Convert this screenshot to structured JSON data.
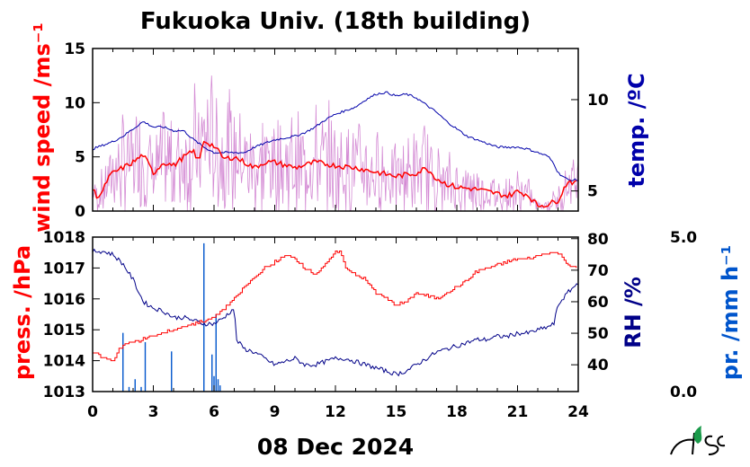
{
  "title": "Fukuoka Univ. (18th building)",
  "date_label": "08 Dec 2024",
  "colors": {
    "wind": "#ff0000",
    "wind_raw": "#cc77cc",
    "temp": "#0000aa",
    "press": "#ff0000",
    "rh": "#000088",
    "precip": "#0055cc",
    "axis": "#000000"
  },
  "chart_data": [
    {
      "type": "line",
      "title": "",
      "xlabel": "",
      "xlim": [
        0,
        24
      ],
      "xticks": [
        "0",
        "3",
        "6",
        "9",
        "12",
        "15",
        "18",
        "21",
        "24"
      ],
      "y_left": {
        "label": "wind speed /ms⁻¹",
        "ylim": [
          0,
          15
        ],
        "ticks": [
          "0",
          "5",
          "10",
          "15"
        ]
      },
      "y_right": {
        "label": "temp. /ºC",
        "ylim": [
          3.9,
          12.8
        ],
        "ticks": [
          "5",
          "10"
        ]
      },
      "series": [
        {
          "name": "",
          "axis": "left",
          "style": "wind_mean",
          "x": [
            0,
            0.25,
            0.5,
            0.75,
            1,
            1.5,
            2,
            2.5,
            3,
            3.5,
            4,
            4.5,
            5,
            5.25,
            5.5,
            6,
            6.5,
            7,
            7.5,
            8,
            8.5,
            9,
            10,
            11,
            12,
            13,
            14,
            15,
            16,
            16.5,
            17,
            17.5,
            18,
            19,
            20,
            20.5,
            21,
            21.5,
            22,
            22.5,
            23,
            23.5,
            24
          ],
          "y": [
            2.0,
            1.3,
            1.8,
            3.0,
            3.5,
            4.0,
            4.5,
            5.2,
            3.5,
            4.5,
            4.2,
            5.0,
            5.5,
            4.5,
            6.5,
            6.0,
            4.8,
            5.0,
            4.5,
            4.0,
            4.5,
            4.5,
            4.0,
            4.5,
            4.2,
            4.0,
            3.6,
            3.2,
            3.5,
            4.0,
            3.0,
            2.5,
            2.2,
            2.0,
            1.6,
            1.4,
            1.8,
            1.5,
            0.5,
            0.6,
            1.0,
            2.8,
            2.5
          ]
        },
        {
          "name": "",
          "axis": "right",
          "style": "temp",
          "x": [
            0,
            0.5,
            1,
            1.5,
            2,
            2.5,
            3,
            3.5,
            4,
            4.5,
            5,
            5.5,
            6,
            6.5,
            6.8,
            7,
            7.5,
            8,
            8.5,
            9,
            9.5,
            10,
            10.5,
            11,
            11.5,
            12,
            12.5,
            13,
            13.5,
            14,
            14.5,
            15,
            15.5,
            16,
            16.5,
            17,
            17.5,
            18,
            18.5,
            19,
            19.5,
            20,
            20.5,
            21,
            21.5,
            22,
            22.5,
            22.8,
            23,
            23.5,
            24
          ],
          "y": [
            7.3,
            7.5,
            7.7,
            8.0,
            8.4,
            8.8,
            8.5,
            8.5,
            8.3,
            8.3,
            7.8,
            7.4,
            7.1,
            7.1,
            7.1,
            7.1,
            7.1,
            7.4,
            7.6,
            7.8,
            7.9,
            8.0,
            8.2,
            8.5,
            8.9,
            9.2,
            9.4,
            9.6,
            10.0,
            10.3,
            10.4,
            10.2,
            10.3,
            10.1,
            9.7,
            9.3,
            8.8,
            8.4,
            8.0,
            7.8,
            7.6,
            7.4,
            7.4,
            7.4,
            7.3,
            7.1,
            6.9,
            6.5,
            6.0,
            5.6,
            5.6
          ]
        }
      ]
    },
    {
      "type": "line",
      "title": "",
      "xlabel": "",
      "xlim": [
        0,
        24
      ],
      "xticks": [
        "0",
        "3",
        "6",
        "9",
        "12",
        "15",
        "18",
        "21",
        "24"
      ],
      "y_left": {
        "label": "press. /hPa",
        "ylim": [
          1013,
          1018
        ],
        "ticks": [
          "1013",
          "1014",
          "1015",
          "1016",
          "1017",
          "1018"
        ]
      },
      "y_right": {
        "label": "RH /%",
        "ylim": [
          31.5,
          80.5
        ],
        "ticks": [
          "40",
          "50",
          "60",
          "70",
          "80"
        ]
      },
      "y_far_right": {
        "label": "pr. /mm h⁻¹",
        "ylim": [
          0,
          5.0
        ],
        "ticks": [
          "0.0",
          "5.0"
        ]
      },
      "series": [
        {
          "name": "",
          "axis": "left",
          "style": "press",
          "x": [
            0,
            0.5,
            1,
            1.3,
            1.5,
            2,
            2.5,
            3,
            3.5,
            4,
            4.5,
            5,
            5.5,
            6,
            6.5,
            7,
            7.5,
            8,
            8.5,
            9,
            9.5,
            10,
            10.5,
            11,
            11.5,
            12,
            12.2,
            12.5,
            13,
            13.5,
            14,
            14.5,
            15,
            15.5,
            16,
            16.5,
            17,
            17.5,
            18,
            18.5,
            19,
            19.5,
            20,
            20.5,
            21,
            21.5,
            22,
            22.5,
            23,
            23.5,
            24
          ],
          "y": [
            1014.3,
            1014.1,
            1014.0,
            1014.4,
            1014.5,
            1014.6,
            1014.7,
            1014.8,
            1014.9,
            1015.0,
            1015.1,
            1015.2,
            1015.3,
            1015.4,
            1015.7,
            1016.0,
            1016.4,
            1016.7,
            1017.0,
            1017.2,
            1017.4,
            1017.3,
            1017.0,
            1016.8,
            1017.1,
            1017.5,
            1017.6,
            1017.0,
            1016.8,
            1016.6,
            1016.2,
            1016.0,
            1015.8,
            1015.9,
            1016.2,
            1016.1,
            1016.0,
            1016.2,
            1016.4,
            1016.6,
            1016.9,
            1017.0,
            1017.1,
            1017.2,
            1017.3,
            1017.3,
            1017.4,
            1017.5,
            1017.5,
            1017.1,
            1017.0
          ]
        },
        {
          "name": "",
          "axis": "right",
          "style": "rh",
          "x": [
            0,
            0.5,
            1,
            1.5,
            2,
            2.5,
            3,
            3.5,
            4,
            4.5,
            5,
            5.5,
            6,
            6.5,
            7,
            7.1,
            7.5,
            8,
            8.5,
            9,
            9.5,
            10,
            10.5,
            11,
            11.5,
            12,
            12.5,
            13,
            13.5,
            14,
            14.5,
            15,
            15.5,
            16,
            16.5,
            17,
            17.5,
            18,
            18.5,
            19,
            19.5,
            20,
            20.5,
            21,
            21.5,
            22,
            22.5,
            22.8,
            23,
            23.5,
            24
          ],
          "y": [
            76,
            76,
            75,
            72,
            67,
            60,
            58,
            57,
            55,
            55,
            54,
            53,
            53,
            55,
            58,
            48,
            45,
            44,
            42,
            40,
            41,
            42,
            40,
            40,
            41,
            42,
            42,
            41,
            40,
            39,
            38,
            37,
            38,
            40,
            42,
            44,
            45,
            46,
            47,
            48,
            48,
            49,
            49,
            50,
            50,
            51,
            52,
            53,
            59,
            63,
            66
          ]
        },
        {
          "name": "",
          "axis": "far_right",
          "style": "precip",
          "kind": "bars",
          "x": [
            1.5,
            1.8,
            2.1,
            2.4,
            2.6,
            3.9,
            5.5,
            5.9,
            6.0,
            6.1,
            6.2,
            6.3
          ],
          "y": [
            1.9,
            0.15,
            0.4,
            0.15,
            1.6,
            1.3,
            4.8,
            1.2,
            0.5,
            2.5,
            0.4,
            0.2
          ]
        }
      ]
    }
  ]
}
